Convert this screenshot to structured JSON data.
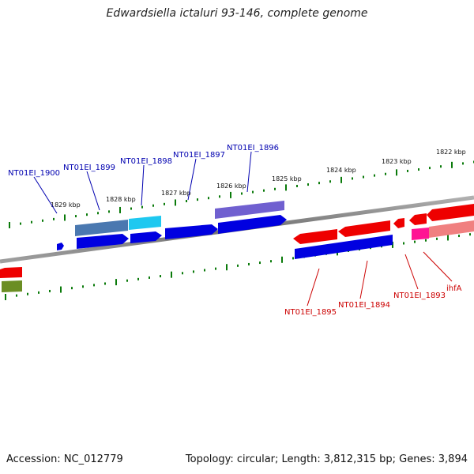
{
  "title": "Edwardsiella ictaluri 93-146, complete genome",
  "footer": {
    "accession": "Accession: NC_012779",
    "summary": "Topology: circular; Length: 3,812,315 bp; Genes: 3,894"
  },
  "ticks": [
    "1829 kbp",
    "1828 kbp",
    "1827 kbp",
    "1826 kbp",
    "1825 kbp",
    "1824 kbp",
    "1823 kbp",
    "1822 kbp"
  ],
  "genes_top": [
    "NT01EI_1900",
    "NT01EI_1899",
    "NT01EI_1898",
    "NT01EI_1897",
    "NT01EI_1896"
  ],
  "genes_bottom": [
    "NT01EI_1895",
    "NT01EI_1894",
    "NT01EI_1893",
    "ihfA"
  ],
  "colors": {
    "backbone": "#808080",
    "forward_strand": "#0000e0",
    "reverse_strand": "#ee0000",
    "tick": "#0a7a0a",
    "label_top": "#0000b0",
    "label_bottom": "#cc0000"
  }
}
